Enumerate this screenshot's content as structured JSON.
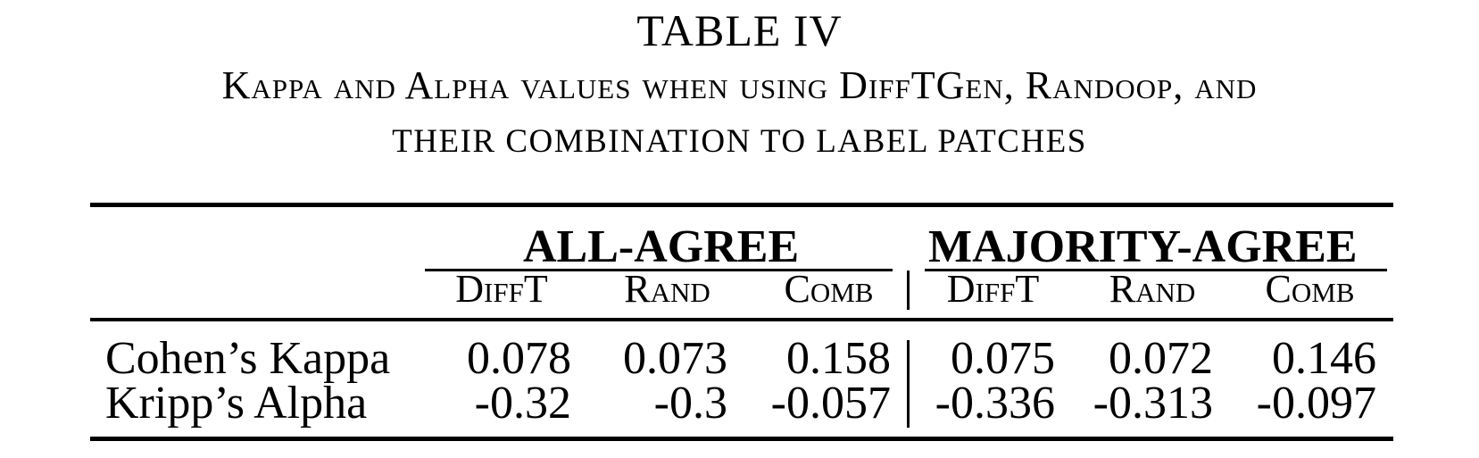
{
  "caption": {
    "table_number": "TABLE IV",
    "line1": "Kappa and Alpha values when using DiffTGen, Randoop, and",
    "line2": "their combination to label patches"
  },
  "table": {
    "group_headers": [
      "ALL-AGREE",
      "MAJORITY-AGREE"
    ],
    "column_headers": [
      "DiffT",
      "Rand",
      "Comb",
      "DiffT",
      "Rand",
      "Comb"
    ],
    "rows": [
      {
        "label": "Cohen’s Kappa",
        "values": [
          "0.078",
          "0.073",
          "0.158",
          "0.075",
          "0.072",
          "0.146"
        ]
      },
      {
        "label": "Kripp’s Alpha",
        "values": [
          "-0.32",
          "-0.3",
          "-0.057",
          "-0.336",
          "-0.313",
          "-0.097"
        ]
      }
    ]
  }
}
